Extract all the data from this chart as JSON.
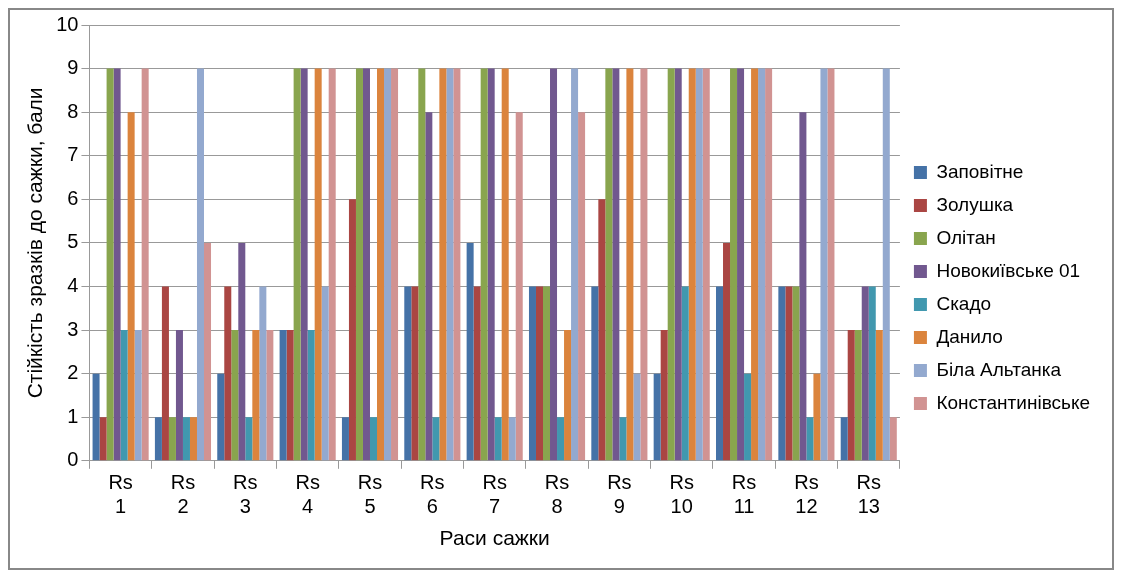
{
  "chart_data": {
    "type": "bar",
    "xlabel": "Раси сажки",
    "ylabel": "Стійкість зразків до сажки, бали",
    "categories": [
      "Rs 1",
      "Rs 2",
      "Rs 3",
      "Rs 4",
      "Rs 5",
      "Rs 6",
      "Rs 7",
      "Rs 8",
      "Rs 9",
      "Rs 10",
      "Rs 11",
      "Rs 12",
      "Rs 13"
    ],
    "series": [
      {
        "name": "Заповітне",
        "color": "#4572a7",
        "values": [
          2,
          1,
          2,
          3,
          1,
          4,
          5,
          4,
          4,
          2,
          4,
          4,
          1
        ]
      },
      {
        "name": "Золушка",
        "color": "#aa4643",
        "values": [
          1,
          4,
          4,
          3,
          6,
          4,
          4,
          4,
          6,
          3,
          5,
          4,
          3
        ]
      },
      {
        "name": "Олітан",
        "color": "#89a54e",
        "values": [
          9,
          1,
          3,
          9,
          9,
          9,
          9,
          4,
          9,
          9,
          9,
          4,
          3
        ]
      },
      {
        "name": "Новокиївське 01",
        "color": "#71588f",
        "values": [
          9,
          3,
          5,
          9,
          9,
          8,
          9,
          9,
          9,
          9,
          9,
          8,
          4
        ]
      },
      {
        "name": "Скадо",
        "color": "#4198af",
        "values": [
          3,
          1,
          1,
          3,
          1,
          1,
          1,
          1,
          1,
          4,
          2,
          1,
          4
        ]
      },
      {
        "name": "Данило",
        "color": "#db843d",
        "values": [
          8,
          1,
          3,
          9,
          9,
          9,
          9,
          3,
          9,
          9,
          9,
          2,
          3
        ]
      },
      {
        "name": "Біла Альтанка",
        "color": "#93a9cf",
        "values": [
          3,
          9,
          4,
          4,
          9,
          9,
          1,
          9,
          2,
          9,
          9,
          9,
          9
        ]
      },
      {
        "name": "Константинівське",
        "color": "#d19392",
        "values": [
          9,
          5,
          3,
          9,
          9,
          9,
          8,
          8,
          9,
          9,
          9,
          9,
          1
        ]
      }
    ],
    "ylim": [
      0,
      10
    ],
    "yticks": [
      0,
      1,
      2,
      3,
      4,
      5,
      6,
      7,
      8,
      9,
      10
    ],
    "grid": "y",
    "legend": "right"
  }
}
